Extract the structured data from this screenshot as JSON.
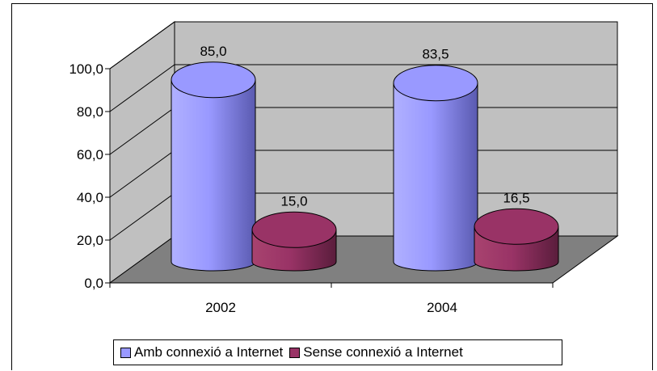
{
  "chart_data": {
    "type": "bar",
    "style": "3d-cylinder",
    "categories": [
      "2002",
      "2004"
    ],
    "series": [
      {
        "name": "Amb connexió a Internet",
        "values": [
          85.0,
          83.5
        ],
        "labels": [
          "85,0",
          "83,5"
        ],
        "color": "#9999ff"
      },
      {
        "name": "Sense connexió a Internet",
        "values": [
          15.0,
          16.5
        ],
        "labels": [
          "15,0",
          "16,5"
        ],
        "color": "#993366"
      }
    ],
    "y_ticks": [
      "0,0",
      "20,0",
      "40,0",
      "60,0",
      "80,0",
      "100,0"
    ],
    "ylim": [
      0,
      100
    ],
    "grid": true,
    "legend": "bottom",
    "wall_color": "#c0c0c0",
    "floor_color": "#808080"
  }
}
